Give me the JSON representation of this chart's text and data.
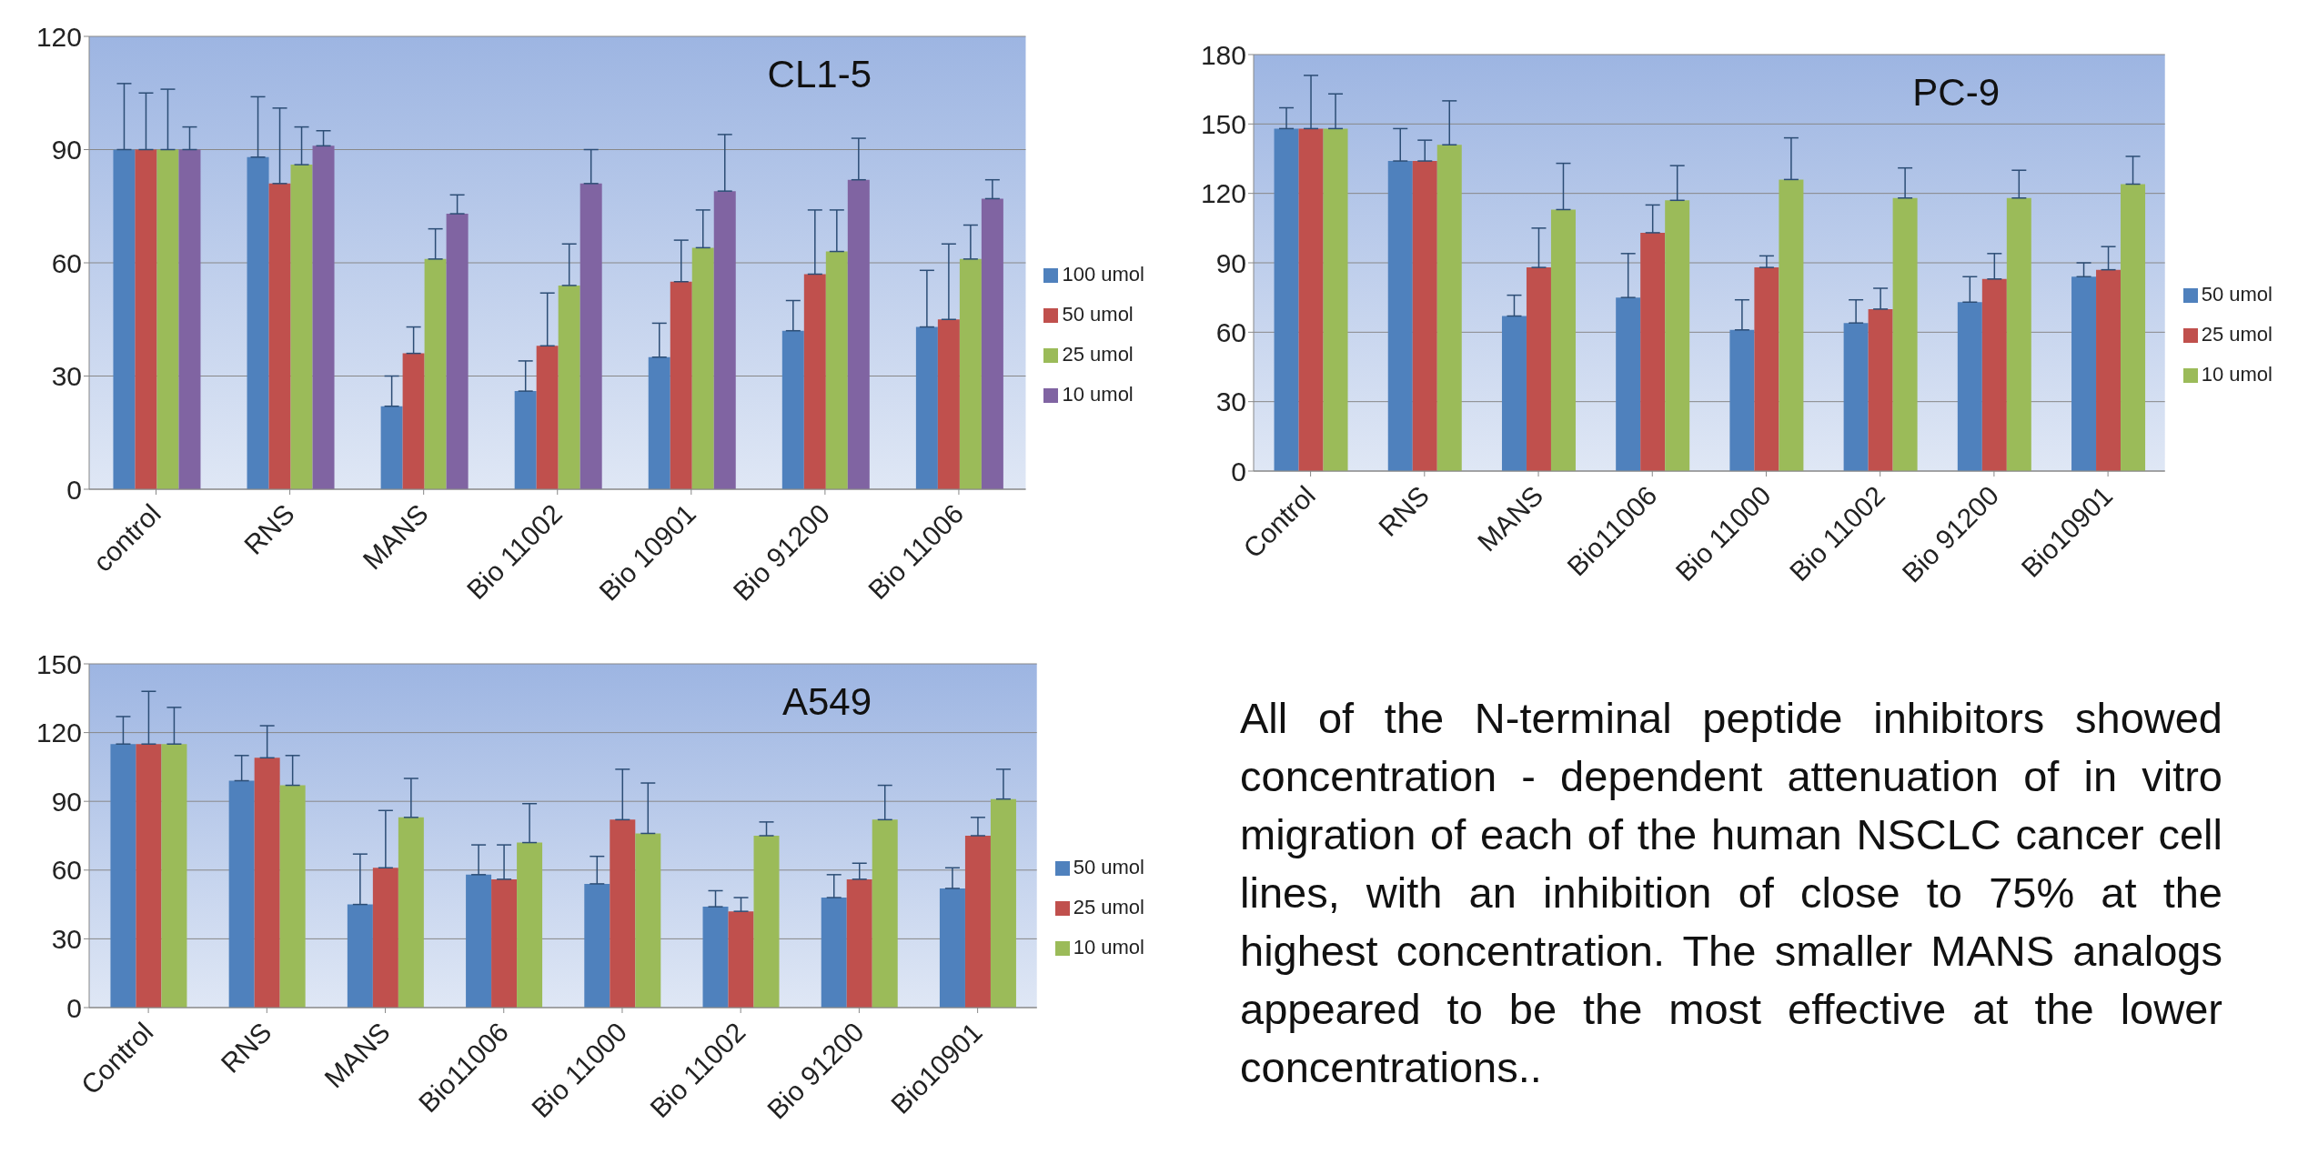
{
  "chart_data": [
    {
      "type": "bar",
      "title": "CL1-5",
      "categories": [
        "control",
        "RNS",
        "MANS",
        "Bio 11002",
        "Bio 10901",
        "Bio 91200",
        "Bio 11006"
      ],
      "ylim": [
        0,
        120
      ],
      "yticks": [
        0,
        30,
        60,
        90,
        120
      ],
      "grid": "y",
      "legend": "right",
      "series": [
        {
          "name": "100 umol",
          "color": "#4f81bd",
          "values": [
            90,
            88,
            22,
            26,
            35,
            42,
            43
          ],
          "errors": [
            [
              90,
              107.5
            ],
            [
              88,
              104
            ],
            [
              22,
              30
            ],
            [
              26,
              34
            ],
            [
              35,
              44
            ],
            [
              42,
              50
            ],
            [
              43,
              58
            ]
          ]
        },
        {
          "name": "50 umol",
          "color": "#c0504d",
          "values": [
            90,
            81,
            36,
            38,
            55,
            57,
            45
          ],
          "errors": [
            [
              90,
              105
            ],
            [
              81,
              101
            ],
            [
              36,
              43
            ],
            [
              38,
              52
            ],
            [
              55,
              66
            ],
            [
              57,
              74
            ],
            [
              45,
              65
            ]
          ]
        },
        {
          "name": "25 umol",
          "color": "#9bbb59",
          "values": [
            90,
            86,
            61,
            54,
            64,
            63,
            61
          ],
          "errors": [
            [
              90,
              106
            ],
            [
              86,
              96
            ],
            [
              61,
              69
            ],
            [
              54,
              65
            ],
            [
              64,
              74
            ],
            [
              63,
              74
            ],
            [
              61,
              70
            ]
          ]
        },
        {
          "name": "10 umol",
          "color": "#8064a2",
          "values": [
            90,
            91,
            73,
            81,
            79,
            82,
            77
          ],
          "errors": [
            [
              90,
              96
            ],
            [
              91,
              95
            ],
            [
              73,
              78
            ],
            [
              81,
              90
            ],
            [
              79,
              94
            ],
            [
              82,
              93
            ],
            [
              77,
              82
            ]
          ]
        }
      ]
    },
    {
      "type": "bar",
      "title": "PC-9",
      "categories": [
        "Control",
        "RNS",
        "MANS",
        "Bio11006",
        "Bio 11000",
        "Bio 11002",
        "Bio 91200",
        "Bio10901"
      ],
      "ylim": [
        0,
        180
      ],
      "yticks": [
        0,
        30,
        60,
        90,
        120,
        150,
        180
      ],
      "grid": "y",
      "legend": "right",
      "series": [
        {
          "name": "50 umol",
          "color": "#4f81bd",
          "values": [
            148,
            134,
            67,
            75,
            61,
            64,
            73,
            84
          ],
          "errors": [
            [
              148,
              157
            ],
            [
              134,
              148
            ],
            [
              67,
              76
            ],
            [
              75,
              94
            ],
            [
              61,
              74
            ],
            [
              64,
              74
            ],
            [
              73,
              84
            ],
            [
              84,
              90
            ]
          ]
        },
        {
          "name": "25 umol",
          "color": "#c0504d",
          "values": [
            148,
            134,
            88,
            103,
            88,
            70,
            83,
            87
          ],
          "errors": [
            [
              148,
              171
            ],
            [
              134,
              143
            ],
            [
              88,
              105
            ],
            [
              103,
              115
            ],
            [
              88,
              93
            ],
            [
              70,
              79
            ],
            [
              83,
              94
            ],
            [
              87,
              97
            ]
          ]
        },
        {
          "name": "10 umol",
          "color": "#9bbb59",
          "values": [
            148,
            141,
            113,
            117,
            126,
            118,
            118,
            124
          ],
          "errors": [
            [
              148,
              163
            ],
            [
              141,
              160
            ],
            [
              113,
              133
            ],
            [
              117,
              132
            ],
            [
              126,
              144
            ],
            [
              118,
              131
            ],
            [
              118,
              130
            ],
            [
              124,
              136
            ]
          ]
        }
      ]
    },
    {
      "type": "bar",
      "title": "A549",
      "categories": [
        "Control",
        "RNS",
        "MANS",
        "Bio11006",
        "Bio 11000",
        "Bio 11002",
        "Bio 91200",
        "Bio10901"
      ],
      "ylim": [
        0,
        150
      ],
      "yticks": [
        0,
        30,
        60,
        90,
        120,
        150
      ],
      "grid": "y",
      "legend": "right",
      "series": [
        {
          "name": "50 umol",
          "color": "#4f81bd",
          "values": [
            115,
            99,
            45,
            58,
            54,
            44,
            48,
            52
          ],
          "errors": [
            [
              115,
              127
            ],
            [
              99,
              110
            ],
            [
              45,
              67
            ],
            [
              58,
              71
            ],
            [
              54,
              66
            ],
            [
              44,
              51
            ],
            [
              48,
              58
            ],
            [
              52,
              61
            ]
          ]
        },
        {
          "name": "25 umol",
          "color": "#c0504d",
          "values": [
            115,
            109,
            61,
            56,
            82,
            42,
            56,
            75
          ],
          "errors": [
            [
              115,
              138
            ],
            [
              109,
              123
            ],
            [
              61,
              86
            ],
            [
              56,
              71
            ],
            [
              82,
              104
            ],
            [
              42,
              48
            ],
            [
              56,
              63
            ],
            [
              75,
              83
            ]
          ]
        },
        {
          "name": "10 umol",
          "color": "#9bbb59",
          "values": [
            115,
            97,
            83,
            72,
            76,
            75,
            82,
            91
          ],
          "errors": [
            [
              115,
              131
            ],
            [
              97,
              110
            ],
            [
              83,
              100
            ],
            [
              72,
              89
            ],
            [
              76,
              98
            ],
            [
              75,
              81
            ],
            [
              82,
              97
            ],
            [
              91,
              104
            ]
          ]
        }
      ]
    },
    {
      "type": "other",
      "annotations": [
        "All of the N-terminal peptide inhibitors showed concentration - dependent attenuation of in vitro migration of each of the human NSCLC cancer cell lines, with an inhibition of close to 75% at the highest concentration. The smaller MANS analogs appeared to be the most effective at the lower concentrations.."
      ]
    }
  ]
}
